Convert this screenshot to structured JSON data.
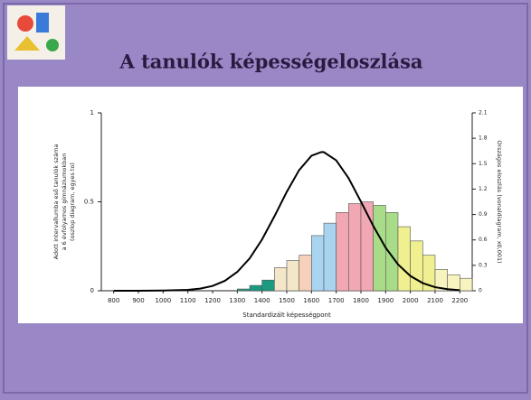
{
  "chart_data": {
    "type": "histogram",
    "title": "A tanulók képességeloszlása",
    "xlabel": "Standardizált képességpont",
    "ylabel": [
      "Adott intervallumba eső tanulók száma",
      "a 6 évfolyamos gimnáziumokban",
      "(oszlop diagram, egyes to)"
    ],
    "y2label": "Országos eloszlás (vonaldiagram, x0,001)",
    "bins": [
      1300,
      1350,
      1400,
      1450,
      1500,
      1550,
      1600,
      1650,
      1700,
      1750,
      1800,
      1850,
      1900,
      1950,
      2000,
      2050,
      2100,
      2150,
      2200,
      2250
    ],
    "values": [
      0.01,
      0.03,
      0.06,
      0.13,
      0.17,
      0.2,
      0.31,
      0.38,
      0.44,
      0.49,
      0.5,
      0.48,
      0.44,
      0.36,
      0.28,
      0.2,
      0.12,
      0.09,
      0.07
    ],
    "bar_colors": [
      "#1a9a80",
      "#1a9a80",
      "#1a9a80",
      "#f4e6c8",
      "#f4e6c8",
      "#f6d0b8",
      "#a8d4f0",
      "#a8d4f0",
      "#f2a8b4",
      "#f2a8b4",
      "#f2a8b4",
      "#a8dc88",
      "#a8dc88",
      "#f0f090",
      "#f0f090",
      "#f0f090",
      "#f8f4c0",
      "#f8f4c0",
      "#f8f4c0"
    ],
    "line": {
      "color": "#000000",
      "x": [
        800,
        900,
        1000,
        1100,
        1150,
        1200,
        1250,
        1300,
        1350,
        1400,
        1450,
        1500,
        1550,
        1600,
        1640,
        1650,
        1700,
        1750,
        1800,
        1850,
        1900,
        1950,
        2000,
        2050,
        2100,
        2150,
        2200
      ],
      "values": [
        0,
        0,
        0.001,
        0.005,
        0.012,
        0.027,
        0.056,
        0.106,
        0.182,
        0.288,
        0.418,
        0.556,
        0.678,
        0.759,
        0.78,
        0.779,
        0.733,
        0.633,
        0.501,
        0.364,
        0.242,
        0.148,
        0.083,
        0.043,
        0.02,
        0.009,
        0.003
      ]
    },
    "xlim": [
      750,
      2250
    ],
    "xticks": [
      800,
      900,
      1000,
      1100,
      1200,
      1300,
      1400,
      1500,
      1600,
      1700,
      1800,
      1900,
      2000,
      2100,
      2200
    ],
    "ylim": [
      0,
      1
    ],
    "yticks": [
      0,
      0.5,
      1
    ],
    "y2lim": [
      0,
      2.1
    ],
    "y2ticks": [
      0,
      0.3,
      0.6,
      0.9,
      1.2,
      1.5,
      1.8,
      2.1
    ]
  }
}
